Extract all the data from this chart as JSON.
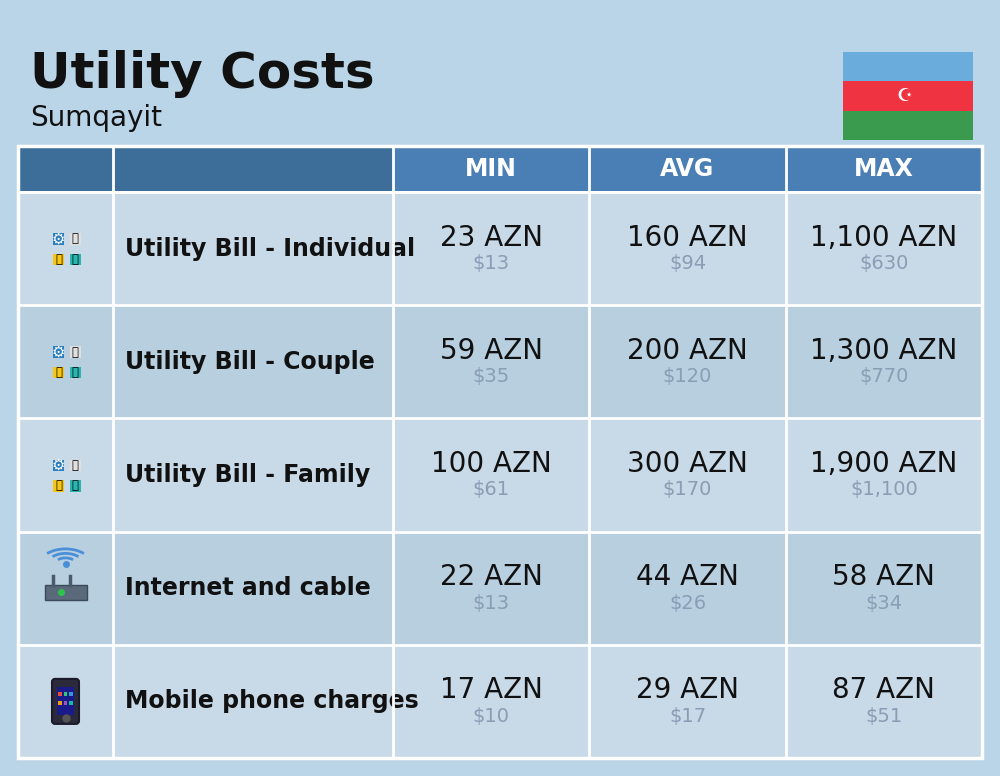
{
  "title": "Utility Costs",
  "subtitle": "Sumqayit",
  "background_color": "#bad4e8",
  "header_bg_color": "#4a7fb5",
  "header_text_color": "#ffffff",
  "row_colors": [
    "#c8d9e8",
    "#b8cfe0"
  ],
  "dark_col_color": "#3a6f9f",
  "columns": [
    "MIN",
    "AVG",
    "MAX"
  ],
  "rows": [
    {
      "label": "Utility Bill - Individual",
      "icon": "utility",
      "min_azn": "23 AZN",
      "min_usd": "$13",
      "avg_azn": "160 AZN",
      "avg_usd": "$94",
      "max_azn": "1,100 AZN",
      "max_usd": "$630"
    },
    {
      "label": "Utility Bill - Couple",
      "icon": "utility",
      "min_azn": "59 AZN",
      "min_usd": "$35",
      "avg_azn": "200 AZN",
      "avg_usd": "$120",
      "max_azn": "1,300 AZN",
      "max_usd": "$770"
    },
    {
      "label": "Utility Bill - Family",
      "icon": "utility",
      "min_azn": "100 AZN",
      "min_usd": "$61",
      "avg_azn": "300 AZN",
      "avg_usd": "$170",
      "max_azn": "1,900 AZN",
      "max_usd": "$1,100"
    },
    {
      "label": "Internet and cable",
      "icon": "internet",
      "min_azn": "22 AZN",
      "min_usd": "$13",
      "avg_azn": "44 AZN",
      "avg_usd": "$26",
      "max_azn": "58 AZN",
      "max_usd": "$34"
    },
    {
      "label": "Mobile phone charges",
      "icon": "phone",
      "min_azn": "17 AZN",
      "min_usd": "$10",
      "avg_azn": "29 AZN",
      "avg_usd": "$17",
      "max_azn": "87 AZN",
      "max_usd": "$51"
    }
  ],
  "title_fontsize": 36,
  "subtitle_fontsize": 20,
  "header_fontsize": 17,
  "label_fontsize": 17,
  "value_fontsize": 20,
  "usd_fontsize": 14,
  "flag_blue": "#6aaddc",
  "flag_red": "#ef3340",
  "flag_green": "#3a9b4e",
  "divider_color": "#ffffff",
  "usd_color": "#8a9db5",
  "text_color": "#111111"
}
